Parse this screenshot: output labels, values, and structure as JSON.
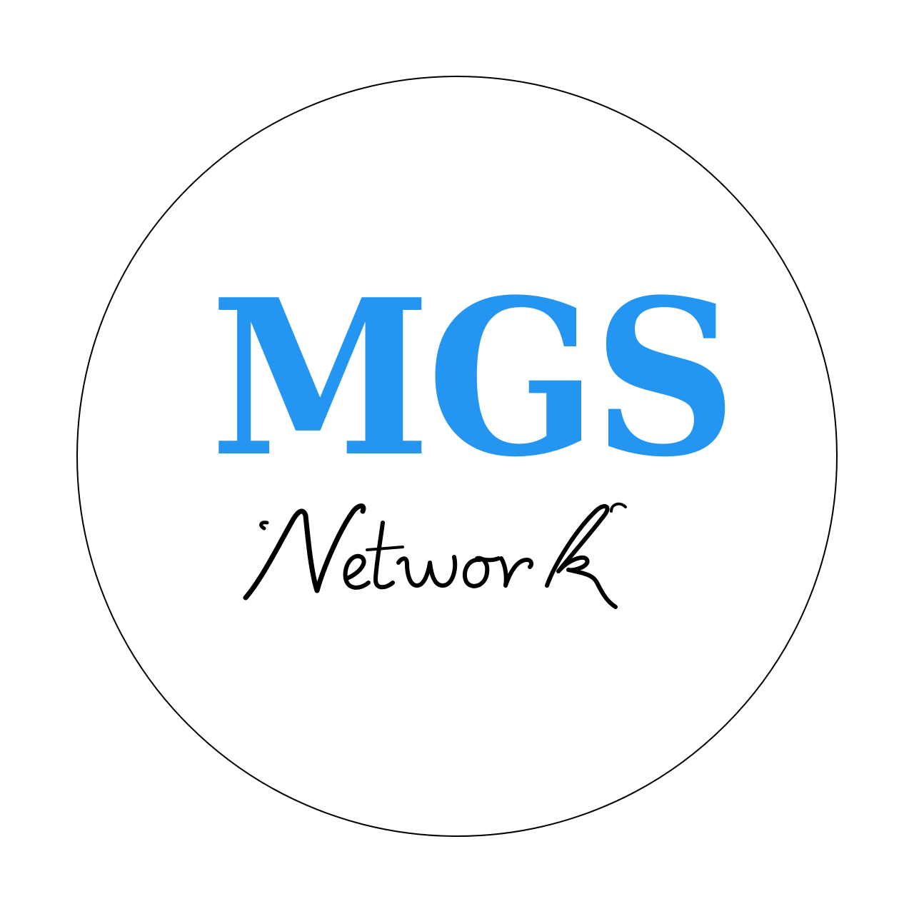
{
  "logo": {
    "primary": "MGS",
    "secondary": "Network",
    "colors": {
      "primary_text": "#2496F2",
      "secondary_text": "#000000",
      "ring": "#000000",
      "background": "#FFFFFF"
    }
  }
}
